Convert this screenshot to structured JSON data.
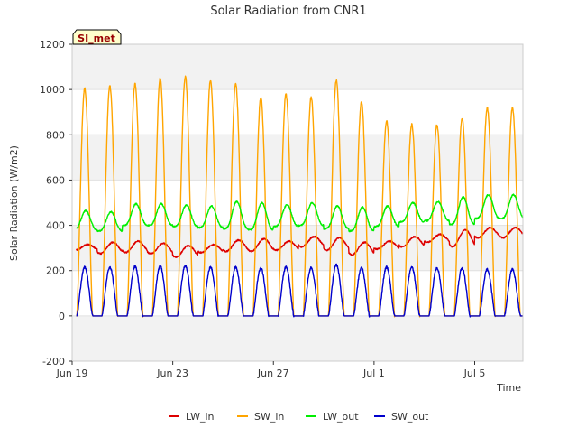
{
  "chart_data": {
    "type": "line",
    "title": "Solar Radiation from CNR1",
    "xlabel": "Time",
    "ylabel": "Solar Radiation (W/m2)",
    "ylim": [
      -200,
      1200
    ],
    "yticks": [
      -200,
      0,
      200,
      400,
      600,
      800,
      1000,
      1200
    ],
    "xlim": [
      "2023-06-19",
      "2023-07-06 22:00"
    ],
    "xticks": [
      {
        "label": "Jun 19",
        "date": "2023-06-19"
      },
      {
        "label": "Jun 23",
        "date": "2023-06-23"
      },
      {
        "label": "Jun 27",
        "date": "2023-06-27"
      },
      {
        "label": "Jul 1",
        "date": "2023-07-01"
      },
      {
        "label": "Jul 5",
        "date": "2023-07-05"
      }
    ],
    "grid": "horizontal alternating bands",
    "legend_position": "bottom",
    "badge": "SI_met",
    "series": [
      {
        "name": "LW_in",
        "color": "#dd0000",
        "daily_max": [
          315,
          325,
          330,
          320,
          310,
          315,
          335,
          340,
          330,
          350,
          345,
          325,
          330,
          350,
          360,
          380,
          390
        ],
        "daily_min": [
          290,
          275,
          280,
          275,
          260,
          280,
          285,
          285,
          290,
          305,
          290,
          270,
          295,
          305,
          325,
          305,
          345
        ]
      },
      {
        "name": "SW_in",
        "color": "#ffa500",
        "daily_max": [
          1005,
          1015,
          1025,
          1050,
          1055,
          1040,
          1025,
          965,
          980,
          965,
          1040,
          945,
          860,
          845,
          845,
          875,
          920
        ],
        "daily_min": [
          0,
          0,
          0,
          0,
          0,
          0,
          0,
          0,
          0,
          0,
          0,
          0,
          0,
          0,
          0,
          0,
          0
        ]
      },
      {
        "name": "LW_out",
        "color": "#00ee00",
        "daily_max": [
          465,
          460,
          495,
          495,
          490,
          485,
          505,
          500,
          490,
          500,
          485,
          480,
          485,
          500,
          505,
          525,
          535
        ],
        "daily_min": [
          380,
          375,
          400,
          400,
          395,
          390,
          385,
          380,
          395,
          400,
          385,
          375,
          395,
          415,
          420,
          405,
          430
        ]
      },
      {
        "name": "SW_out",
        "color": "#0000cc",
        "daily_max": [
          215,
          215,
          218,
          220,
          222,
          215,
          215,
          212,
          215,
          212,
          225,
          212,
          215,
          215,
          212,
          210,
          205
        ],
        "daily_min": [
          0,
          0,
          0,
          0,
          0,
          0,
          0,
          0,
          0,
          0,
          0,
          0,
          0,
          0,
          0,
          0,
          0
        ]
      }
    ]
  }
}
